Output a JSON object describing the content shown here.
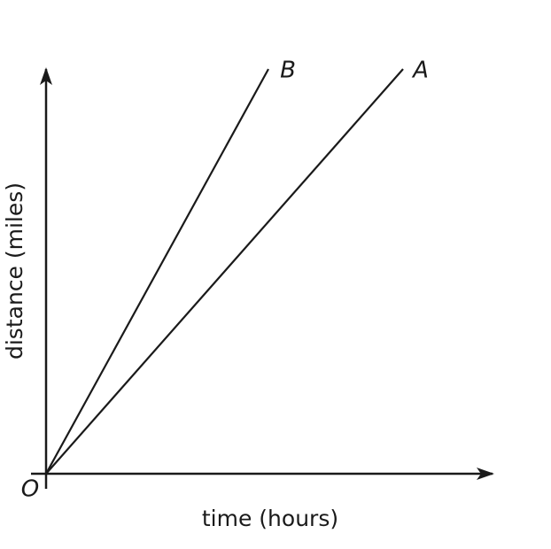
{
  "axes": {
    "x_label": "time (hours)",
    "y_label": "distance (miles)",
    "origin": "O"
  },
  "lines": [
    {
      "label": "A"
    },
    {
      "label": "B"
    }
  ]
}
